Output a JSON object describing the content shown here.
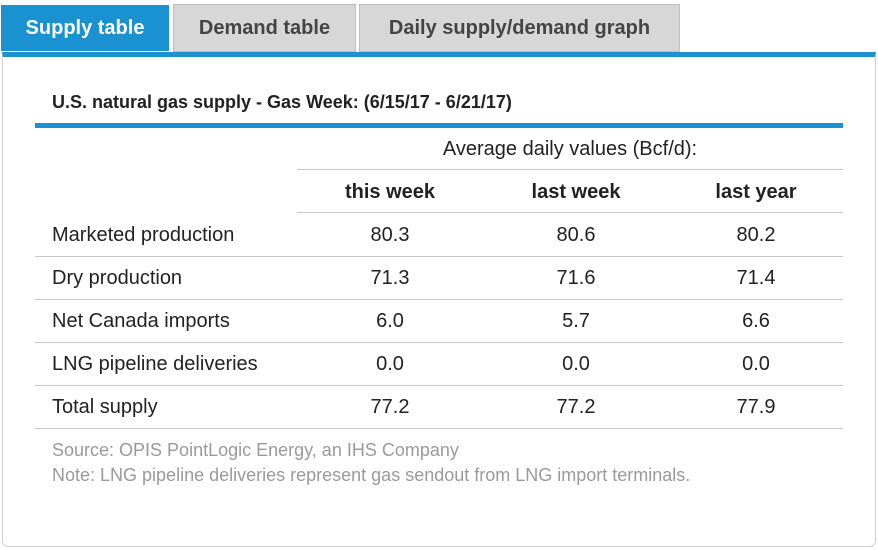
{
  "tabs": [
    {
      "label": "Supply table",
      "active": true
    },
    {
      "label": "Demand table",
      "active": false
    },
    {
      "label": "Daily supply/demand graph",
      "active": false
    }
  ],
  "table": {
    "title": "U.S. natural gas supply - Gas Week: (6/15/17 - 6/21/17)",
    "group_header": "Average daily values (Bcf/d):",
    "columns": [
      "this week",
      "last week",
      "last year"
    ],
    "rows": [
      {
        "label": "Marketed production",
        "values": [
          "80.3",
          "80.6",
          "80.2"
        ]
      },
      {
        "label": "Dry production",
        "values": [
          "71.3",
          "71.6",
          "71.4"
        ]
      },
      {
        "label": "Net Canada imports",
        "values": [
          "6.0",
          "5.7",
          "6.6"
        ]
      },
      {
        "label": "LNG pipeline deliveries",
        "values": [
          "0.0",
          "0.0",
          "0.0"
        ]
      },
      {
        "label": "Total supply",
        "values": [
          "77.2",
          "77.2",
          "77.9"
        ]
      }
    ]
  },
  "footer": {
    "source": "Source: OPIS PointLogic Energy, an IHS Company",
    "note": "Note: LNG pipeline deliveries represent gas sendout from LNG import terminals."
  },
  "colors": {
    "accent": "#1a91d0",
    "inactive_tab": "#d7d7d7",
    "note_text": "#9a9a9a"
  }
}
